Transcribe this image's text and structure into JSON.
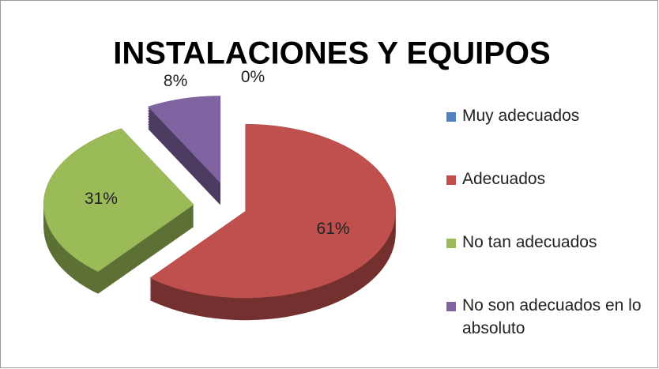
{
  "chart_data": {
    "type": "pie",
    "title": "INSTALACIONES Y EQUIPOS",
    "categories": [
      "Muy adecuados",
      "Adecuados",
      "No tan adecuados",
      "No son adecuados en lo absoluto"
    ],
    "values": [
      0,
      61,
      31,
      8
    ],
    "value_labels": [
      "0%",
      "61%",
      "31%",
      "8%"
    ],
    "colors": [
      "#4f81bd",
      "#c0504d",
      "#9bbb59",
      "#8064a2"
    ],
    "legend": "right"
  }
}
